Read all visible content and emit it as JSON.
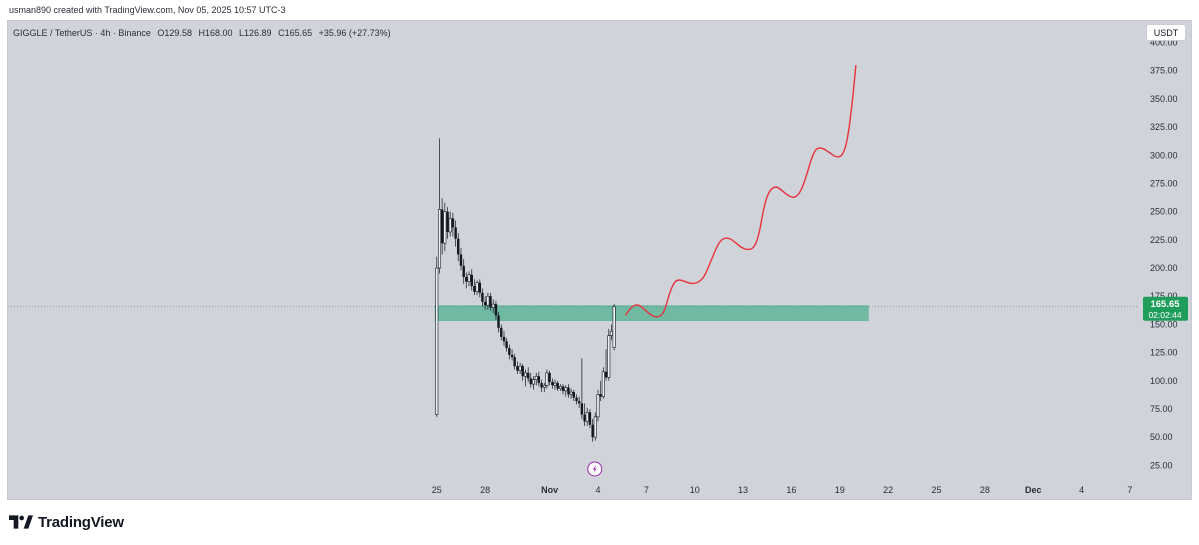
{
  "header": {
    "creator_line": "usman890 created with TradingView.com, Nov 05, 2025 10:57 UTC-3"
  },
  "symbol_info": {
    "pair": "GIGGLE / TetherUS · 4h · Binance",
    "open": "O129.58",
    "high": "H168.00",
    "low": "L126.89",
    "close": "C165.65",
    "change": "+35.96 (+27.73%)"
  },
  "currency_button": "USDT",
  "price_label": {
    "value": "165.65",
    "countdown": "02:02:44"
  },
  "footer": {
    "brand": "TradingView"
  },
  "colors": {
    "background": "#d0d3da",
    "zone": "#5fb59a",
    "price_label": "#1e9e5a",
    "projection": "#e8323c",
    "candle": "#131722",
    "lightning_icon": "#9c27b0"
  },
  "chart_data": {
    "type": "candlestick",
    "title": "",
    "xlabel": "",
    "ylabel": "",
    "ylim": [
      12,
      420
    ],
    "grid": false,
    "y_ticks": [
      400,
      375,
      350,
      325,
      300,
      275,
      250,
      225,
      200,
      175,
      150,
      125,
      100,
      75,
      50,
      25
    ],
    "y_tick_labels": [
      "400.00",
      "375.00",
      "350.00",
      "325.00",
      "300.00",
      "275.00",
      "250.00",
      "225.00",
      "200.00",
      "175.00",
      "150.00",
      "125.00",
      "100.00",
      "75.00",
      "50.00",
      "25.00"
    ],
    "x_ticks": [
      {
        "label": "25",
        "bold": false
      },
      {
        "label": "28",
        "bold": false
      },
      {
        "label": "Nov",
        "bold": true
      },
      {
        "label": "4",
        "bold": false
      },
      {
        "label": "7",
        "bold": false
      },
      {
        "label": "10",
        "bold": false
      },
      {
        "label": "13",
        "bold": false
      },
      {
        "label": "16",
        "bold": false
      },
      {
        "label": "19",
        "bold": false
      },
      {
        "label": "22",
        "bold": false
      },
      {
        "label": "25",
        "bold": false
      },
      {
        "label": "28",
        "bold": false
      },
      {
        "label": "Dec",
        "bold": true
      },
      {
        "label": "4",
        "bold": false
      },
      {
        "label": "7",
        "bold": false
      }
    ],
    "x_tick_days": [
      0,
      3,
      7,
      10,
      13,
      16,
      19,
      22,
      25,
      28,
      31,
      34,
      37,
      40,
      43
    ],
    "x_domain_days": [
      -26.6,
      43.5
    ],
    "current_price": 165.65,
    "zone": {
      "low": 153,
      "high": 167,
      "start_day": 0,
      "end_day": 26.8
    },
    "candles": [
      {
        "d": 0.0,
        "o": 70,
        "h": 210,
        "l": 68,
        "c": 200
      },
      {
        "d": 0.17,
        "o": 200,
        "h": 315,
        "l": 195,
        "c": 252
      },
      {
        "d": 0.33,
        "o": 252,
        "h": 262,
        "l": 212,
        "c": 222
      },
      {
        "d": 0.5,
        "o": 222,
        "h": 258,
        "l": 215,
        "c": 250
      },
      {
        "d": 0.67,
        "o": 250,
        "h": 254,
        "l": 226,
        "c": 232
      },
      {
        "d": 0.83,
        "o": 232,
        "h": 250,
        "l": 228,
        "c": 244
      },
      {
        "d": 1.0,
        "o": 244,
        "h": 249,
        "l": 228,
        "c": 236
      },
      {
        "d": 1.17,
        "o": 236,
        "h": 242,
        "l": 219,
        "c": 226
      },
      {
        "d": 1.33,
        "o": 226,
        "h": 231,
        "l": 206,
        "c": 212
      },
      {
        "d": 1.5,
        "o": 212,
        "h": 218,
        "l": 198,
        "c": 202
      },
      {
        "d": 1.67,
        "o": 202,
        "h": 208,
        "l": 186,
        "c": 192
      },
      {
        "d": 1.83,
        "o": 192,
        "h": 196,
        "l": 182,
        "c": 188
      },
      {
        "d": 2.0,
        "o": 188,
        "h": 197,
        "l": 184,
        "c": 194
      },
      {
        "d": 2.17,
        "o": 194,
        "h": 199,
        "l": 180,
        "c": 184
      },
      {
        "d": 2.33,
        "o": 184,
        "h": 190,
        "l": 176,
        "c": 179
      },
      {
        "d": 2.5,
        "o": 179,
        "h": 189,
        "l": 176,
        "c": 187
      },
      {
        "d": 2.67,
        "o": 187,
        "h": 190,
        "l": 174,
        "c": 178
      },
      {
        "d": 2.83,
        "o": 178,
        "h": 182,
        "l": 166,
        "c": 170
      },
      {
        "d": 3.0,
        "o": 170,
        "h": 175,
        "l": 163,
        "c": 167
      },
      {
        "d": 3.17,
        "o": 167,
        "h": 178,
        "l": 163,
        "c": 175
      },
      {
        "d": 3.33,
        "o": 175,
        "h": 178,
        "l": 162,
        "c": 165
      },
      {
        "d": 3.5,
        "o": 165,
        "h": 172,
        "l": 160,
        "c": 168
      },
      {
        "d": 3.67,
        "o": 168,
        "h": 171,
        "l": 154,
        "c": 158
      },
      {
        "d": 3.83,
        "o": 158,
        "h": 161,
        "l": 143,
        "c": 147
      },
      {
        "d": 4.0,
        "o": 147,
        "h": 150,
        "l": 136,
        "c": 139
      },
      {
        "d": 4.17,
        "o": 139,
        "h": 144,
        "l": 131,
        "c": 135
      },
      {
        "d": 4.33,
        "o": 135,
        "h": 138,
        "l": 126,
        "c": 129
      },
      {
        "d": 4.5,
        "o": 129,
        "h": 132,
        "l": 119,
        "c": 123
      },
      {
        "d": 4.67,
        "o": 123,
        "h": 128,
        "l": 118,
        "c": 121
      },
      {
        "d": 4.83,
        "o": 121,
        "h": 124,
        "l": 110,
        "c": 113
      },
      {
        "d": 5.0,
        "o": 113,
        "h": 117,
        "l": 106,
        "c": 109
      },
      {
        "d": 5.17,
        "o": 109,
        "h": 116,
        "l": 106,
        "c": 113
      },
      {
        "d": 5.33,
        "o": 113,
        "h": 115,
        "l": 100,
        "c": 104
      },
      {
        "d": 5.5,
        "o": 104,
        "h": 110,
        "l": 95,
        "c": 107
      },
      {
        "d": 5.67,
        "o": 107,
        "h": 112,
        "l": 99,
        "c": 102
      },
      {
        "d": 5.83,
        "o": 102,
        "h": 107,
        "l": 94,
        "c": 97
      },
      {
        "d": 6.0,
        "o": 97,
        "h": 104,
        "l": 92,
        "c": 101
      },
      {
        "d": 6.17,
        "o": 101,
        "h": 107,
        "l": 96,
        "c": 104
      },
      {
        "d": 6.33,
        "o": 104,
        "h": 108,
        "l": 95,
        "c": 98
      },
      {
        "d": 6.5,
        "o": 98,
        "h": 101,
        "l": 90,
        "c": 94
      },
      {
        "d": 6.67,
        "o": 94,
        "h": 98,
        "l": 90,
        "c": 96
      },
      {
        "d": 6.83,
        "o": 96,
        "h": 110,
        "l": 93,
        "c": 107
      },
      {
        "d": 7.0,
        "o": 107,
        "h": 109,
        "l": 96,
        "c": 99
      },
      {
        "d": 7.17,
        "o": 99,
        "h": 102,
        "l": 93,
        "c": 96
      },
      {
        "d": 7.33,
        "o": 96,
        "h": 101,
        "l": 92,
        "c": 98
      },
      {
        "d": 7.5,
        "o": 98,
        "h": 100,
        "l": 91,
        "c": 93
      },
      {
        "d": 7.67,
        "o": 93,
        "h": 97,
        "l": 91,
        "c": 95
      },
      {
        "d": 7.83,
        "o": 95,
        "h": 97,
        "l": 88,
        "c": 91
      },
      {
        "d": 8.0,
        "o": 91,
        "h": 96,
        "l": 86,
        "c": 94
      },
      {
        "d": 8.17,
        "o": 94,
        "h": 97,
        "l": 85,
        "c": 88
      },
      {
        "d": 8.33,
        "o": 88,
        "h": 93,
        "l": 84,
        "c": 90
      },
      {
        "d": 8.5,
        "o": 90,
        "h": 92,
        "l": 82,
        "c": 85
      },
      {
        "d": 8.67,
        "o": 85,
        "h": 88,
        "l": 79,
        "c": 82
      },
      {
        "d": 8.83,
        "o": 82,
        "h": 86,
        "l": 76,
        "c": 80
      },
      {
        "d": 9.0,
        "o": 80,
        "h": 120,
        "l": 66,
        "c": 70
      },
      {
        "d": 9.17,
        "o": 70,
        "h": 80,
        "l": 60,
        "c": 64
      },
      {
        "d": 9.33,
        "o": 64,
        "h": 76,
        "l": 60,
        "c": 72
      },
      {
        "d": 9.5,
        "o": 72,
        "h": 75,
        "l": 58,
        "c": 61
      },
      {
        "d": 9.67,
        "o": 61,
        "h": 66,
        "l": 46,
        "c": 50
      },
      {
        "d": 9.83,
        "o": 50,
        "h": 72,
        "l": 47,
        "c": 68
      },
      {
        "d": 10.0,
        "o": 68,
        "h": 92,
        "l": 64,
        "c": 88
      },
      {
        "d": 10.17,
        "o": 88,
        "h": 100,
        "l": 82,
        "c": 86
      },
      {
        "d": 10.33,
        "o": 86,
        "h": 112,
        "l": 84,
        "c": 108
      },
      {
        "d": 10.5,
        "o": 108,
        "h": 128,
        "l": 100,
        "c": 103
      },
      {
        "d": 10.67,
        "o": 103,
        "h": 146,
        "l": 100,
        "c": 140
      },
      {
        "d": 10.83,
        "o": 140,
        "h": 150,
        "l": 136,
        "c": 144
      },
      {
        "d": 11.0,
        "o": 129.58,
        "h": 168,
        "l": 126.89,
        "c": 165.65
      }
    ],
    "projection": [
      [
        11.7,
        158
      ],
      [
        12.1,
        166
      ],
      [
        12.5,
        168
      ],
      [
        12.9,
        163
      ],
      [
        13.3,
        158
      ],
      [
        13.7,
        156
      ],
      [
        14.1,
        160
      ],
      [
        14.4,
        176
      ],
      [
        14.7,
        187
      ],
      [
        15.0,
        190
      ],
      [
        15.4,
        188
      ],
      [
        15.8,
        186
      ],
      [
        16.2,
        187
      ],
      [
        16.6,
        192
      ],
      [
        17.0,
        206
      ],
      [
        17.4,
        220
      ],
      [
        17.7,
        226
      ],
      [
        18.1,
        227
      ],
      [
        18.5,
        223
      ],
      [
        18.9,
        218
      ],
      [
        19.3,
        216
      ],
      [
        19.7,
        218
      ],
      [
        20.0,
        230
      ],
      [
        20.3,
        255
      ],
      [
        20.6,
        268
      ],
      [
        21.0,
        273
      ],
      [
        21.4,
        269
      ],
      [
        21.8,
        264
      ],
      [
        22.2,
        262
      ],
      [
        22.6,
        268
      ],
      [
        23.0,
        285
      ],
      [
        23.3,
        300
      ],
      [
        23.6,
        307
      ],
      [
        24.0,
        306
      ],
      [
        24.4,
        302
      ],
      [
        24.8,
        298
      ],
      [
        25.2,
        300
      ],
      [
        25.5,
        315
      ],
      [
        25.8,
        350
      ],
      [
        26.0,
        380
      ]
    ]
  }
}
